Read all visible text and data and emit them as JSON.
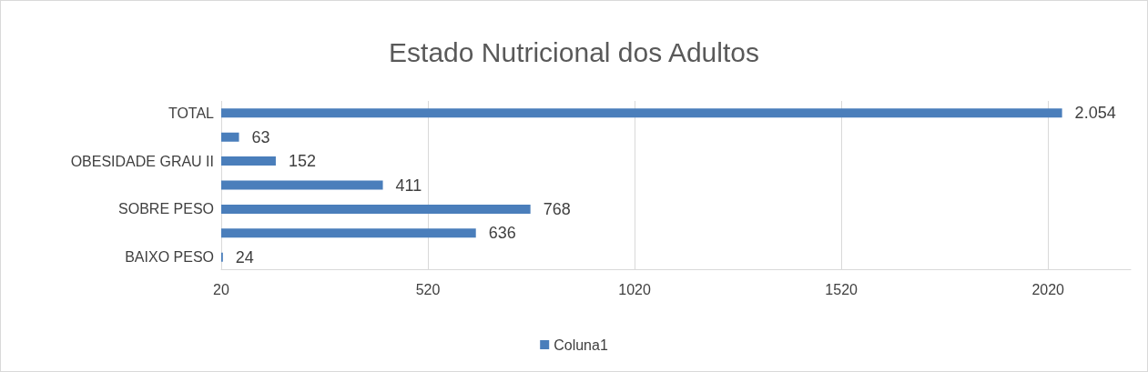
{
  "chart_data": {
    "type": "bar",
    "orientation": "horizontal",
    "title": "Estado Nutricional dos Adultos",
    "categories": [
      "TOTAL",
      null,
      "OBESIDADE GRAU II",
      null,
      "SOBRE PESO",
      null,
      "BAIXO PESO"
    ],
    "series": [
      {
        "name": "Coluna1",
        "color": "#4a7ebb",
        "values": [
          2054,
          63,
          152,
          411,
          768,
          636,
          24
        ],
        "value_labels": [
          "2.054",
          "63",
          "152",
          "411",
          "768",
          "636",
          "24"
        ]
      }
    ],
    "xlim": [
      20,
      2220
    ],
    "xticks": [
      20,
      520,
      1020,
      1520,
      2020
    ],
    "grid": "x",
    "legend": "bottom"
  }
}
